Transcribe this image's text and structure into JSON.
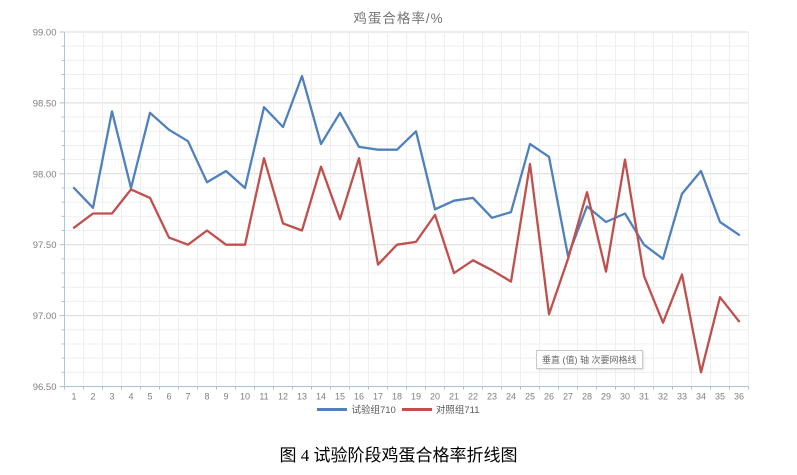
{
  "chart_data": {
    "type": "line",
    "title": "鸡蛋合格率/%",
    "xlabel": "",
    "ylabel": "",
    "ylim": [
      96.5,
      99.0
    ],
    "y_major_step": 0.5,
    "y_minor_step": 0.1,
    "y_tick_labels": [
      "99.00",
      "98.50",
      "98.00",
      "97.50",
      "97.00",
      "96.50"
    ],
    "grid": "major and minor horizontal gridlines, vertical category gridlines",
    "legend_position": "bottom",
    "x": [
      "1",
      "2",
      "3",
      "4",
      "5",
      "6",
      "7",
      "8",
      "9",
      "10",
      "11",
      "12",
      "13",
      "14",
      "15",
      "16",
      "17",
      "18",
      "19",
      "20",
      "21",
      "22",
      "23",
      "24",
      "25",
      "26",
      "27",
      "28",
      "29",
      "30",
      "31",
      "32",
      "33",
      "34",
      "35",
      "36"
    ],
    "series": [
      {
        "name": "试验组710",
        "color": "#4F81BD",
        "values": [
          97.9,
          97.76,
          98.44,
          97.9,
          98.43,
          98.31,
          98.23,
          97.94,
          98.02,
          97.9,
          98.47,
          98.33,
          98.69,
          98.21,
          98.43,
          98.19,
          98.17,
          98.17,
          98.3,
          97.75,
          97.81,
          97.83,
          97.69,
          97.73,
          98.21,
          98.12,
          97.42,
          97.77,
          97.66,
          97.72,
          97.5,
          97.4,
          97.86,
          98.02,
          97.66,
          97.57
        ]
      },
      {
        "name": "对照组711",
        "color": "#C0504D",
        "values": [
          97.62,
          97.72,
          97.72,
          97.89,
          97.83,
          97.55,
          97.5,
          97.6,
          97.5,
          97.5,
          98.11,
          97.65,
          97.6,
          98.05,
          97.68,
          98.11,
          97.36,
          97.5,
          97.52,
          97.71,
          97.3,
          97.39,
          97.32,
          97.24,
          98.07,
          97.01,
          97.4,
          97.87,
          97.31,
          98.1,
          97.28,
          96.95,
          97.29,
          96.6,
          97.13,
          96.96
        ]
      }
    ],
    "axis_color": "#aac4e0",
    "major_grid_color": "#d9d9d9",
    "minor_grid_color": "#efefef",
    "tick_label_color": "#7f7f7f"
  },
  "tooltip": {
    "text": "垂直 (值) 轴 次要网格线"
  },
  "caption": {
    "text": "图 4 试验阶段鸡蛋合格率折线图"
  }
}
